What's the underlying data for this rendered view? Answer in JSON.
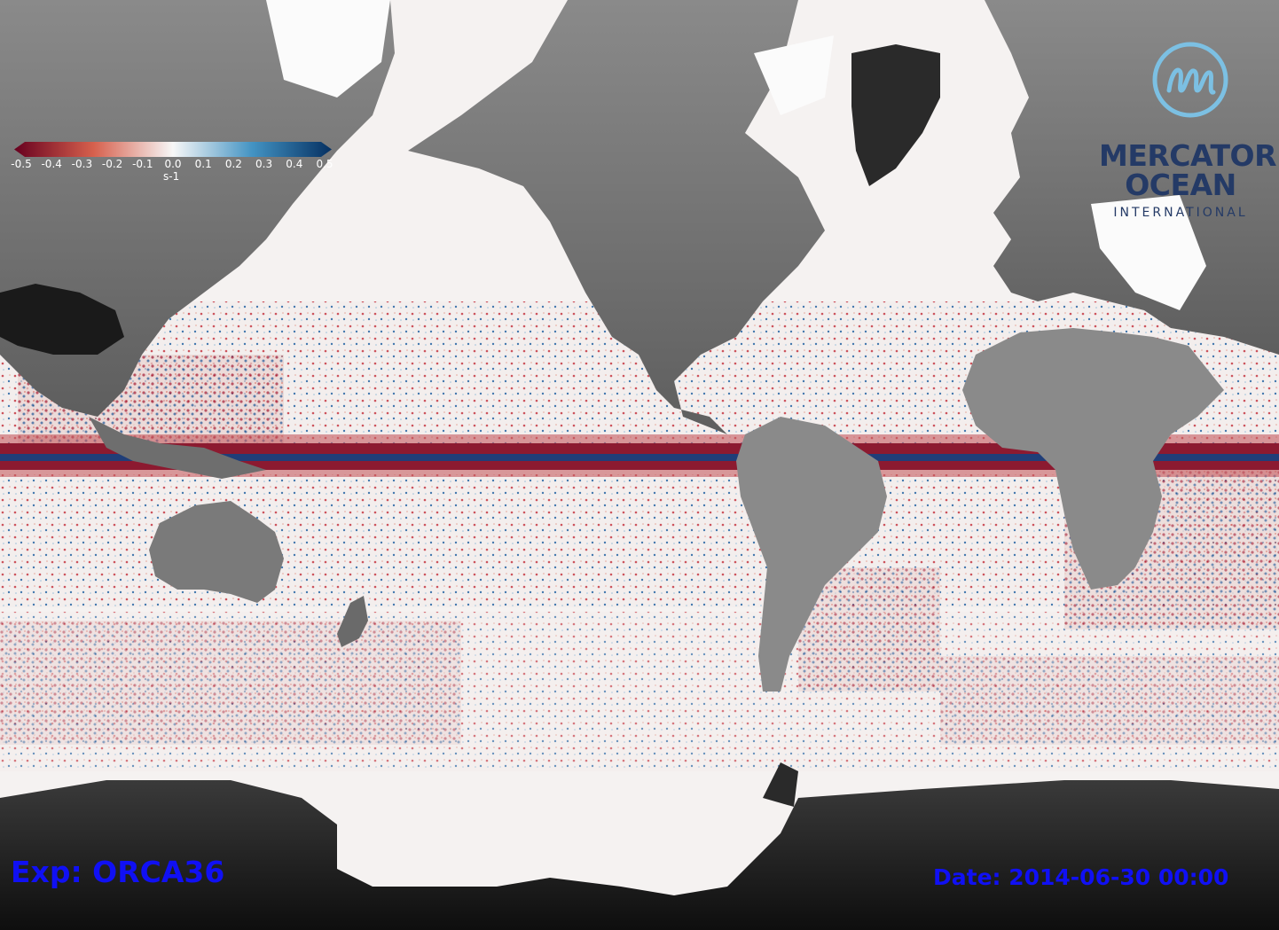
{
  "map": {
    "projection": "global cylindrical",
    "field_colormap": {
      "negative": "#7a0a1e",
      "zero": "#f7f7f7",
      "positive": "#0f3a73"
    },
    "land_shading": "grayscale relief"
  },
  "colorbar": {
    "min": -0.5,
    "max": 0.5,
    "ticks": [
      "-0.5",
      "-0.4",
      "-0.3",
      "-0.2",
      "-0.1",
      "0.0",
      "0.1",
      "0.2",
      "0.3",
      "0.4",
      "0.5"
    ],
    "unit": "s-1",
    "colors": {
      "neg_end": "#67001f",
      "neg_mid": "#d6604d",
      "zero": "#f7f7f7",
      "pos_mid": "#4393c3",
      "pos_end": "#053061"
    }
  },
  "logo": {
    "line1": "MERCATOR",
    "line2": "OCEAN",
    "line3": "INTERNATIONAL",
    "mark_color": "#7cc0e3",
    "text_color": "#243a66"
  },
  "labels": {
    "experiment": "Exp: ORCA36",
    "date": "Date: 2014-06-30 00:00",
    "color": "#1010f4"
  }
}
